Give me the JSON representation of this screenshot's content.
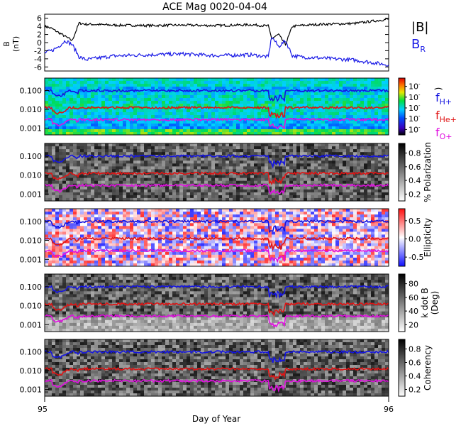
{
  "title": "ACE Mag 0020-04-04",
  "x_axis": {
    "label": "Day of Year",
    "ticks": [
      "95",
      "96"
    ]
  },
  "colors": {
    "total": "#000000",
    "radial": "#1a1ae6",
    "h": "#1414e0",
    "he": "#e01414",
    "o": "#e010e0"
  },
  "chart_data": [
    {
      "type": "line",
      "ylabel_line1": "B",
      "ylabel_line2": "(nT)",
      "yticks": [
        "6",
        "4",
        "2",
        "0",
        "-2",
        "-4",
        "-6"
      ],
      "ylim": [
        -7,
        7
      ],
      "xlim": [
        95,
        96
      ],
      "legend": [
        "|B|",
        "B",
        "R"
      ],
      "series": [
        {
          "name": "|B|",
          "x": [
            95.0,
            95.02,
            95.04,
            95.06,
            95.08,
            95.1,
            95.12,
            95.14,
            95.2,
            95.3,
            95.4,
            95.5,
            95.6,
            95.65,
            95.66,
            95.68,
            95.7,
            95.72,
            95.74,
            95.8,
            95.9,
            96.0
          ],
          "values": [
            4.0,
            3.5,
            2.5,
            1.5,
            0.5,
            4.8,
            4.5,
            4.5,
            4.3,
            4.2,
            4.3,
            4.2,
            4.4,
            4.1,
            1.0,
            2.0,
            -0.5,
            4.0,
            4.2,
            4.5,
            4.7,
            5.8
          ]
        },
        {
          "name": "B_R",
          "x": [
            95.0,
            95.02,
            95.04,
            95.06,
            95.08,
            95.1,
            95.12,
            95.14,
            95.2,
            95.3,
            95.4,
            95.5,
            95.6,
            95.65,
            95.66,
            95.68,
            95.7,
            95.72,
            95.74,
            95.8,
            95.9,
            96.0
          ],
          "values": [
            -2.5,
            -2.0,
            -1.0,
            0.5,
            -0.5,
            -3.5,
            -4.2,
            -4.0,
            -3.3,
            -3.0,
            -2.8,
            -3.2,
            -3.0,
            -3.5,
            1.5,
            -1.0,
            0.5,
            -3.2,
            -3.5,
            -3.8,
            -4.3,
            -5.5
          ]
        }
      ]
    },
    {
      "type": "heatmap",
      "yticks": [
        "0.100",
        "0.010",
        "0.001"
      ],
      "colorbar_ticks": [
        "10",
        "10",
        "10",
        "10",
        "10"
      ],
      "colorbar_exps": [
        "-",
        "-",
        "-",
        "-",
        "-"
      ],
      "colorbar_label": ")",
      "side_labels": [
        {
          "main": "f",
          "sub": "H+"
        },
        {
          "main": "f",
          "sub": "He+"
        },
        {
          "main": "f",
          "sub": "O+"
        }
      ],
      "lines_ylog": {
        "H": -1.2,
        "He": -1.85,
        "O": -2.3
      }
    },
    {
      "type": "heatmap",
      "yticks": [
        "0.100",
        "0.010",
        "0.001"
      ],
      "colorbar_ticks": [
        "0.8",
        "0.6",
        "0.4",
        "0.2"
      ],
      "colorbar_label": "% Polarization"
    },
    {
      "type": "heatmap",
      "yticks": [
        "0.100",
        "0.010",
        "0.001"
      ],
      "colorbar_ticks": [
        "0.5",
        "0.0",
        "-0.5"
      ],
      "colorbar_label": "Ellipticity"
    },
    {
      "type": "heatmap",
      "yticks": [
        "0.100",
        "0.010",
        "0.001"
      ],
      "colorbar_ticks": [
        "80",
        "60",
        "40",
        "20"
      ],
      "colorbar_label_line1": "k dot B",
      "colorbar_label_line2": "(Deg)"
    },
    {
      "type": "heatmap",
      "yticks": [
        "0.100",
        "0.010",
        "0.001"
      ],
      "colorbar_ticks": [
        "0.8",
        "0.6",
        "0.4",
        "0.2"
      ],
      "colorbar_label": "Coherency"
    }
  ]
}
